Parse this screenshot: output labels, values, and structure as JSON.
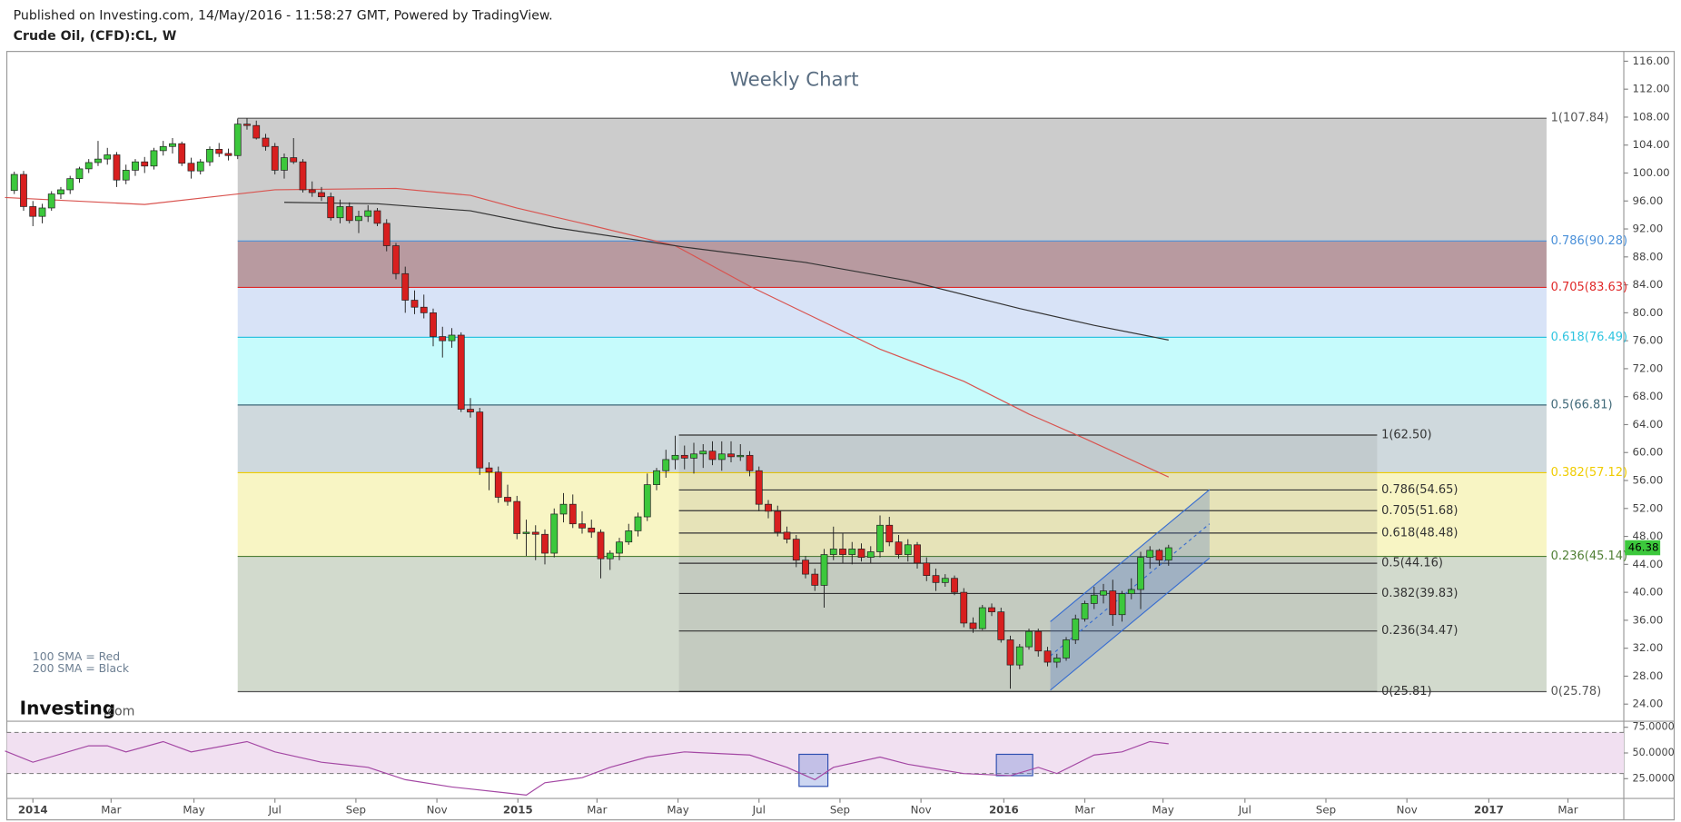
{
  "header": {
    "published": "Published on Investing.com, 14/May/2016 - 11:58:27 GMT, Powered by TradingView.",
    "symbol": "Crude Oil, (CFD):CL, W"
  },
  "branding": {
    "name": "Investing",
    "suffix": ".com"
  },
  "chart_data": {
    "type": "candlestick",
    "title": "Weekly Chart",
    "xlim": [
      -2.8,
      170.9
    ],
    "xticks": [
      {
        "value": 0,
        "label": "2014"
      },
      {
        "value": 8.4,
        "label": "Mar"
      },
      {
        "value": 17.3,
        "label": "May"
      },
      {
        "value": 26,
        "label": "Jul"
      },
      {
        "value": 34.7,
        "label": "Sep"
      },
      {
        "value": 43.4,
        "label": "Nov"
      },
      {
        "value": 52.1,
        "label": "2015"
      },
      {
        "value": 60.6,
        "label": "Mar"
      },
      {
        "value": 69.3,
        "label": "May"
      },
      {
        "value": 78,
        "label": "Jul"
      },
      {
        "value": 86.7,
        "label": "Sep"
      },
      {
        "value": 95.4,
        "label": "Nov"
      },
      {
        "value": 104.3,
        "label": "2016"
      },
      {
        "value": 113,
        "label": "Mar"
      },
      {
        "value": 121.4,
        "label": "May"
      },
      {
        "value": 130.2,
        "label": "Jul"
      },
      {
        "value": 138.9,
        "label": "Sep"
      },
      {
        "value": 147.6,
        "label": "Nov"
      },
      {
        "value": 156.4,
        "label": "2017"
      },
      {
        "value": 164.9,
        "label": "Mar"
      }
    ],
    "ylim": [
      21.7,
      117.4
    ],
    "yticks": [
      {
        "value": 24,
        "label": "24.00"
      },
      {
        "value": 28,
        "label": "28.00"
      },
      {
        "value": 32,
        "label": "32.00"
      },
      {
        "value": 36,
        "label": "36.00"
      },
      {
        "value": 40,
        "label": "40.00"
      },
      {
        "value": 44,
        "label": "44.00"
      },
      {
        "value": 48,
        "label": "48.00"
      },
      {
        "value": 52,
        "label": "52.00"
      },
      {
        "value": 56,
        "label": "56.00"
      },
      {
        "value": 60,
        "label": "60.00"
      },
      {
        "value": 64,
        "label": "64.00"
      },
      {
        "value": 68,
        "label": "68.00"
      },
      {
        "value": 72,
        "label": "72.00"
      },
      {
        "value": 76,
        "label": "76.00"
      },
      {
        "value": 80,
        "label": "80.00"
      },
      {
        "value": 84,
        "label": "84.00"
      },
      {
        "value": 88,
        "label": "88.00"
      },
      {
        "value": 92,
        "label": "92.00"
      },
      {
        "value": 96,
        "label": "96.00"
      },
      {
        "value": 100,
        "label": "100.00"
      },
      {
        "value": 104,
        "label": "104.00"
      },
      {
        "value": 108,
        "label": "108.00"
      },
      {
        "value": 112,
        "label": "112.00"
      },
      {
        "value": 116,
        "label": "116.00"
      }
    ],
    "grid": false,
    "up_color": "#3cc83c",
    "down_color": "#d81f1f",
    "candles": [
      [
        -2,
        97.5,
        100.2,
        97.0,
        99.8
      ],
      [
        -1,
        99.8,
        100.3,
        94.6,
        95.2
      ],
      [
        0,
        95.2,
        96.0,
        92.4,
        93.8
      ],
      [
        1,
        93.8,
        95.6,
        92.8,
        95.0
      ],
      [
        2,
        95.0,
        97.4,
        94.6,
        97.0
      ],
      [
        3,
        97.0,
        98.0,
        96.3,
        97.6
      ],
      [
        4,
        97.6,
        99.6,
        97.0,
        99.2
      ],
      [
        5,
        99.2,
        100.9,
        98.6,
        100.6
      ],
      [
        6,
        100.6,
        102.0,
        100.0,
        101.5
      ],
      [
        7,
        101.5,
        104.6,
        101.0,
        102.0
      ],
      [
        8,
        102.0,
        103.6,
        101.2,
        102.6
      ],
      [
        9,
        102.6,
        103.0,
        98.0,
        99.0
      ],
      [
        10,
        99.0,
        101.2,
        98.4,
        100.4
      ],
      [
        11,
        100.4,
        102.0,
        99.6,
        101.6
      ],
      [
        12,
        101.6,
        102.3,
        100.0,
        101.0
      ],
      [
        13,
        101.0,
        103.6,
        100.5,
        103.2
      ],
      [
        14,
        103.2,
        104.6,
        102.5,
        103.8
      ],
      [
        15,
        103.8,
        105.0,
        102.8,
        104.2
      ],
      [
        16,
        104.2,
        104.5,
        101.0,
        101.4
      ],
      [
        17,
        101.4,
        102.2,
        99.2,
        100.3
      ],
      [
        18,
        100.3,
        102.0,
        99.8,
        101.6
      ],
      [
        19,
        101.6,
        103.8,
        101.0,
        103.4
      ],
      [
        20,
        103.4,
        104.3,
        102.3,
        102.8
      ],
      [
        21,
        102.8,
        103.5,
        101.8,
        102.5
      ],
      [
        22,
        102.5,
        107.8,
        102.0,
        107.0
      ],
      [
        23,
        107.0,
        107.84,
        106.2,
        106.8
      ],
      [
        24,
        106.8,
        107.5,
        104.8,
        105.0
      ],
      [
        25,
        105.0,
        105.6,
        103.2,
        103.8
      ],
      [
        26,
        103.8,
        104.3,
        99.8,
        100.4
      ],
      [
        27,
        100.4,
        102.8,
        99.2,
        102.2
      ],
      [
        28,
        102.2,
        105.0,
        101.3,
        101.6
      ],
      [
        29,
        101.6,
        102.0,
        97.2,
        97.6
      ],
      [
        30,
        97.6,
        98.8,
        96.6,
        97.2
      ],
      [
        31,
        97.2,
        98.0,
        96.0,
        96.6
      ],
      [
        32,
        96.6,
        97.2,
        93.2,
        93.6
      ],
      [
        33,
        93.6,
        96.2,
        92.8,
        95.2
      ],
      [
        34,
        95.2,
        95.8,
        92.8,
        93.2
      ],
      [
        35,
        93.2,
        94.6,
        91.4,
        93.8
      ],
      [
        36,
        93.8,
        95.4,
        93.0,
        94.6
      ],
      [
        37,
        94.6,
        95.0,
        92.4,
        92.8
      ],
      [
        38,
        92.8,
        93.4,
        88.8,
        89.6
      ],
      [
        39,
        89.6,
        90.0,
        84.8,
        85.6
      ],
      [
        40,
        85.6,
        86.6,
        80.0,
        81.8
      ],
      [
        41,
        81.8,
        83.2,
        79.8,
        80.8
      ],
      [
        42,
        80.8,
        82.6,
        79.2,
        80.0
      ],
      [
        43,
        80.0,
        80.6,
        75.2,
        76.6
      ],
      [
        44,
        76.6,
        78.0,
        73.6,
        76.0
      ],
      [
        45,
        76.0,
        77.8,
        75.0,
        76.8
      ],
      [
        46,
        76.8,
        77.2,
        65.8,
        66.2
      ],
      [
        47,
        66.2,
        67.8,
        65.0,
        65.8
      ],
      [
        48,
        65.8,
        66.4,
        56.8,
        57.8
      ],
      [
        49,
        57.8,
        58.6,
        54.6,
        57.2
      ],
      [
        50,
        57.2,
        58.0,
        52.8,
        53.6
      ],
      [
        51,
        53.6,
        55.4,
        52.4,
        53.0
      ],
      [
        52,
        53.0,
        53.8,
        47.6,
        48.4
      ],
      [
        53,
        48.4,
        50.4,
        45.2,
        48.6
      ],
      [
        54,
        48.6,
        49.6,
        44.6,
        48.3
      ],
      [
        55,
        48.3,
        49.0,
        44.0,
        45.6
      ],
      [
        56,
        45.6,
        52.0,
        45.0,
        51.2
      ],
      [
        57,
        51.2,
        54.2,
        50.0,
        52.6
      ],
      [
        58,
        52.6,
        54.0,
        49.2,
        49.8
      ],
      [
        59,
        49.8,
        51.6,
        48.4,
        49.2
      ],
      [
        60,
        49.2,
        50.4,
        47.8,
        48.6
      ],
      [
        61,
        48.6,
        49.0,
        42.0,
        44.8
      ],
      [
        62,
        44.8,
        46.0,
        43.2,
        45.6
      ],
      [
        63,
        45.6,
        47.8,
        44.6,
        47.2
      ],
      [
        64,
        47.2,
        49.8,
        46.8,
        48.8
      ],
      [
        65,
        48.8,
        51.4,
        48.0,
        50.8
      ],
      [
        66,
        50.8,
        57.0,
        50.2,
        55.4
      ],
      [
        67,
        55.4,
        57.8,
        54.6,
        57.4
      ],
      [
        68,
        57.4,
        60.4,
        56.4,
        59.0
      ],
      [
        69,
        59.0,
        62.4,
        57.6,
        59.6
      ],
      [
        70,
        59.6,
        61.0,
        57.6,
        59.2
      ],
      [
        71,
        59.2,
        61.4,
        57.0,
        59.8
      ],
      [
        72,
        59.8,
        61.2,
        57.8,
        60.2
      ],
      [
        73,
        60.2,
        61.6,
        58.2,
        59.0
      ],
      [
        74,
        59.0,
        61.6,
        57.4,
        59.8
      ],
      [
        75,
        59.8,
        61.6,
        58.6,
        59.4
      ],
      [
        76,
        59.4,
        61.2,
        58.8,
        59.6
      ],
      [
        77,
        59.6,
        60.2,
        56.6,
        57.4
      ],
      [
        78,
        57.4,
        58.0,
        51.6,
        52.6
      ],
      [
        79,
        52.6,
        53.2,
        50.6,
        51.6
      ],
      [
        80,
        51.6,
        52.4,
        48.0,
        48.6
      ],
      [
        81,
        48.6,
        49.4,
        47.0,
        47.6
      ],
      [
        82,
        47.6,
        48.2,
        43.6,
        44.6
      ],
      [
        83,
        44.6,
        45.2,
        42.0,
        42.6
      ],
      [
        84,
        42.6,
        43.4,
        40.2,
        41.0
      ],
      [
        85,
        41.0,
        46.2,
        37.8,
        45.4
      ],
      [
        86,
        45.4,
        49.4,
        44.6,
        46.2
      ],
      [
        87,
        46.2,
        48.4,
        44.2,
        45.4
      ],
      [
        88,
        45.4,
        47.2,
        44.0,
        46.2
      ],
      [
        89,
        46.2,
        47.0,
        44.4,
        45.0
      ],
      [
        90,
        45.0,
        46.6,
        44.2,
        45.8
      ],
      [
        91,
        45.8,
        51.0,
        45.0,
        49.6
      ],
      [
        92,
        49.6,
        50.8,
        46.6,
        47.2
      ],
      [
        93,
        47.2,
        48.2,
        44.8,
        45.4
      ],
      [
        94,
        45.4,
        47.6,
        44.4,
        46.8
      ],
      [
        95,
        46.8,
        47.2,
        43.4,
        44.2
      ],
      [
        96,
        44.2,
        45.0,
        41.6,
        42.4
      ],
      [
        97,
        42.4,
        43.4,
        40.2,
        41.4
      ],
      [
        98,
        41.4,
        42.6,
        40.8,
        42.0
      ],
      [
        99,
        42.0,
        42.4,
        39.6,
        40.0
      ],
      [
        100,
        40.0,
        40.6,
        35.0,
        35.6
      ],
      [
        101,
        35.6,
        36.4,
        34.2,
        34.8
      ],
      [
        102,
        34.8,
        38.2,
        34.6,
        37.8
      ],
      [
        103,
        37.8,
        38.4,
        36.6,
        37.2
      ],
      [
        104,
        37.2,
        37.8,
        32.8,
        33.2
      ],
      [
        105,
        33.2,
        33.8,
        26.2,
        29.6
      ],
      [
        106,
        29.6,
        32.6,
        29.0,
        32.2
      ],
      [
        107,
        32.2,
        34.8,
        31.8,
        34.4
      ],
      [
        108,
        34.4,
        34.8,
        30.8,
        31.6
      ],
      [
        109,
        31.6,
        32.2,
        29.4,
        30.0
      ],
      [
        110,
        30.0,
        31.2,
        29.2,
        30.6
      ],
      [
        111,
        30.6,
        33.6,
        30.2,
        33.2
      ],
      [
        112,
        33.2,
        36.8,
        32.6,
        36.2
      ],
      [
        113,
        36.2,
        38.8,
        35.8,
        38.4
      ],
      [
        114,
        38.4,
        40.8,
        37.6,
        39.6
      ],
      [
        115,
        39.6,
        41.2,
        38.4,
        40.2
      ],
      [
        116,
        40.2,
        41.8,
        35.2,
        36.8
      ],
      [
        117,
        36.8,
        40.2,
        35.8,
        39.8
      ],
      [
        118,
        39.8,
        42.0,
        39.0,
        40.4
      ],
      [
        119,
        40.4,
        45.8,
        37.6,
        45.0
      ],
      [
        120,
        45.0,
        46.6,
        43.4,
        46.0
      ],
      [
        121,
        46.0,
        46.2,
        43.8,
        44.6
      ],
      [
        122,
        44.6,
        46.8,
        43.8,
        46.38
      ]
    ],
    "sma": [
      {
        "name": "100 SMA = Red",
        "color": "#d9534f",
        "x": [
          -3,
          12,
          26,
          39,
          47,
          52,
          60,
          69,
          77,
          91,
          100,
          107,
          113,
          122
        ],
        "values": [
          96.5,
          95.5,
          97.6,
          97.8,
          96.8,
          95.0,
          92.5,
          89.6,
          83.8,
          74.8,
          70.2,
          65.5,
          62.0,
          56.5
        ]
      },
      {
        "name": "200 SMA = Black",
        "color": "#333333",
        "x": [
          27,
          37,
          47,
          56,
          70,
          83,
          94,
          106,
          114,
          122
        ],
        "values": [
          95.8,
          95.6,
          94.6,
          92.2,
          89.4,
          87.2,
          84.6,
          80.6,
          78.2,
          76.1
        ]
      }
    ],
    "fibs": [
      {
        "x": [
          22,
          162.6
        ],
        "color": "#777777",
        "levels": [
          {
            "label": "1(107.84)",
            "value": 107.84,
            "color": "#555555",
            "fill": "#cccccc"
          },
          {
            "label": "0.786(90.28)",
            "value": 90.28,
            "color": "#4a90d9",
            "fill": "#b89aa0"
          },
          {
            "label": "0.705(83.63)",
            "value": 83.63,
            "color": "#e02828",
            "fill": "#d8e3f7"
          },
          {
            "label": "0.618(76.49)",
            "value": 76.49,
            "color": "#2ec4e0",
            "fill": "#c6fbfc"
          },
          {
            "label": "0.5(66.81)",
            "value": 66.81,
            "color": "#3f6878",
            "fill": "#cfd9dd"
          },
          {
            "label": "0.382(57.12)",
            "value": 57.12,
            "color": "#f0cc00",
            "fill": "#f8f5c4"
          },
          {
            "label": "0.236(45.14)",
            "value": 45.14,
            "color": "#4f7f34",
            "fill": "#d2dacd"
          },
          {
            "label": "0(25.78)",
            "value": 25.78,
            "color": "#555555"
          }
        ]
      },
      {
        "x": [
          69.4,
          144.4
        ],
        "color": "#333333",
        "fill": "rgba(110,110,110,0.13)",
        "levels": [
          {
            "label": "1(62.50)",
            "value": 62.5
          },
          {
            "label": "0.786(54.65)",
            "value": 54.65
          },
          {
            "label": "0.705(51.68)",
            "value": 51.68
          },
          {
            "label": "0.618(48.48)",
            "value": 48.48
          },
          {
            "label": "0.5(44.16)",
            "value": 44.16
          },
          {
            "label": "0.382(39.83)",
            "value": 39.83
          },
          {
            "label": "0.236(34.47)",
            "value": 34.47
          },
          {
            "label": "0(25.81)",
            "value": 25.81
          }
        ]
      }
    ],
    "channel": {
      "x": [
        109.3,
        126.4
      ],
      "upper": [
        35.8,
        54.7
      ],
      "middle": [
        30.9,
        49.8
      ],
      "lower": [
        26.0,
        44.9
      ],
      "color": "#3a6fd0",
      "fill": "rgba(70,110,200,0.28)"
    },
    "indicator": {
      "type": "line",
      "color": "#a448a4",
      "band_fill": "#f1e0f1",
      "levels": [
        70,
        30
      ],
      "ylim": [
        5.8,
        78.75
      ],
      "yticks": [
        {
          "value": 75,
          "label": "75.0000"
        },
        {
          "value": 50,
          "label": "50.0000"
        },
        {
          "value": 25,
          "label": "25.0000"
        }
      ],
      "x": [
        -3,
        0,
        6,
        8,
        10,
        14,
        17,
        23,
        26,
        31,
        36,
        40,
        45,
        51,
        53,
        55,
        59,
        62,
        66,
        70,
        77,
        81,
        84,
        86,
        91,
        94,
        100,
        105,
        108,
        110,
        114,
        117,
        120,
        122
      ],
      "values": [
        52,
        41,
        57,
        57,
        51,
        61,
        51,
        61,
        51,
        41,
        36,
        24,
        17,
        11,
        9,
        21,
        26,
        36,
        46,
        51,
        48,
        36,
        24,
        36,
        46,
        39,
        30,
        28,
        36,
        30,
        48,
        51,
        61,
        59
      ],
      "highlights": [
        {
          "x": [
            82.3,
            85.4
          ],
          "y": [
            17.5,
            48.7
          ]
        },
        {
          "x": [
            103.5,
            107.4
          ],
          "y": [
            27.9,
            48.7
          ]
        }
      ]
    }
  }
}
